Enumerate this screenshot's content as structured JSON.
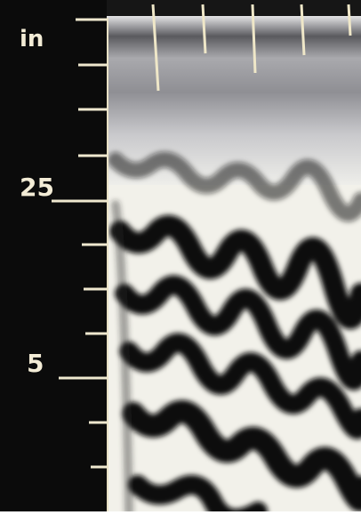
{
  "axis": {
    "unit": "in",
    "labels": [
      "25",
      "5"
    ]
  }
}
